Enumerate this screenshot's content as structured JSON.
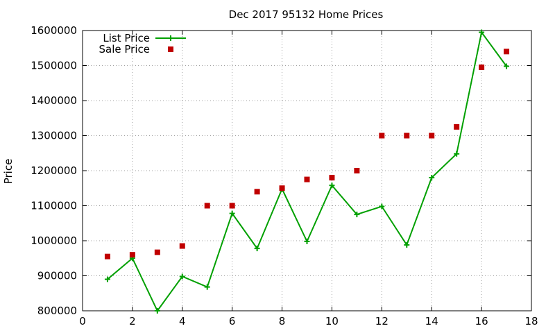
{
  "chart_data": {
    "type": "line",
    "title": "Dec 2017 95132 Home Prices",
    "xlabel": "",
    "ylabel": "Price",
    "xlim": [
      0,
      18
    ],
    "ylim": [
      800000,
      1600000
    ],
    "xticks": [
      0,
      2,
      4,
      6,
      8,
      10,
      12,
      14,
      16,
      18
    ],
    "yticks": [
      800000,
      900000,
      1000000,
      1100000,
      1200000,
      1300000,
      1400000,
      1500000,
      1600000
    ],
    "grid": true,
    "legend_position": "top-left",
    "series": [
      {
        "name": "List Price",
        "style": "line+cross",
        "color": "#00a000",
        "x": [
          1,
          2,
          3,
          4,
          5,
          6,
          7,
          8,
          9,
          10,
          11,
          12,
          13,
          14,
          15,
          16,
          17
        ],
        "y": [
          890000,
          950000,
          800000,
          898000,
          868000,
          1078000,
          978000,
          1148000,
          998000,
          1158000,
          1075000,
          1098000,
          988000,
          1180000,
          1248000,
          1595000,
          1498000
        ]
      },
      {
        "name": "Sale Price",
        "style": "square",
        "color": "#c00000",
        "x": [
          1,
          2,
          3,
          4,
          5,
          6,
          7,
          8,
          9,
          10,
          11,
          12,
          13,
          14,
          15,
          16,
          17
        ],
        "y": [
          955000,
          960000,
          967000,
          985000,
          1100000,
          1100000,
          1140000,
          1150000,
          1175000,
          1180000,
          1200000,
          1300000,
          1300000,
          1300000,
          1325000,
          1495000,
          1540000
        ]
      }
    ]
  }
}
